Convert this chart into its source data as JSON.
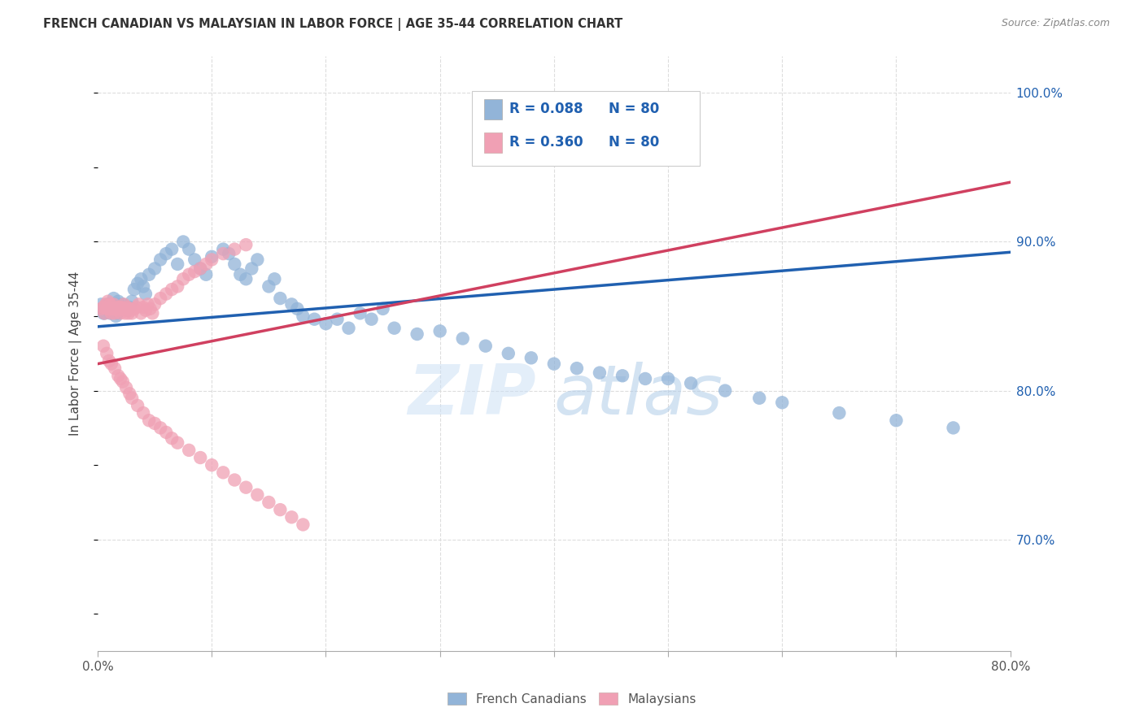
{
  "title": "FRENCH CANADIAN VS MALAYSIAN IN LABOR FORCE | AGE 35-44 CORRELATION CHART",
  "source": "Source: ZipAtlas.com",
  "ylabel": "In Labor Force | Age 35-44",
  "xlim": [
    0.0,
    0.8
  ],
  "ylim": [
    0.625,
    1.025
  ],
  "xticks": [
    0.0,
    0.1,
    0.2,
    0.3,
    0.4,
    0.5,
    0.6,
    0.7,
    0.8
  ],
  "xticklabels": [
    "0.0%",
    "",
    "",
    "",
    "",
    "",
    "",
    "",
    "80.0%"
  ],
  "yticks_right": [
    0.7,
    0.8,
    0.9,
    1.0
  ],
  "ytick_right_labels": [
    "70.0%",
    "80.0%",
    "90.0%",
    "100.0%"
  ],
  "watermark_zip": "ZIP",
  "watermark_atlas": "atlas",
  "legend_r1": "R = 0.088",
  "legend_n1": "N = 80",
  "legend_r2": "R = 0.360",
  "legend_n2": "N = 80",
  "blue_color": "#92b4d8",
  "pink_color": "#f0a0b4",
  "blue_line_color": "#2060b0",
  "pink_line_color": "#d04060",
  "blue_trend_x": [
    0.0,
    0.8
  ],
  "blue_trend_y": [
    0.843,
    0.893
  ],
  "pink_trend_x": [
    0.0,
    0.8
  ],
  "pink_trend_y": [
    0.818,
    0.94
  ],
  "blue_scatter_x": [
    0.005,
    0.007,
    0.01,
    0.012,
    0.014,
    0.016,
    0.018,
    0.02,
    0.022,
    0.024,
    0.026,
    0.028,
    0.03,
    0.032,
    0.035,
    0.038,
    0.04,
    0.042,
    0.045,
    0.05,
    0.055,
    0.06,
    0.065,
    0.07,
    0.075,
    0.08,
    0.085,
    0.09,
    0.095,
    0.1,
    0.11,
    0.115,
    0.12,
    0.125,
    0.13,
    0.135,
    0.14,
    0.15,
    0.155,
    0.16,
    0.17,
    0.175,
    0.18,
    0.19,
    0.2,
    0.21,
    0.22,
    0.23,
    0.24,
    0.25,
    0.26,
    0.28,
    0.3,
    0.32,
    0.34,
    0.36,
    0.38,
    0.4,
    0.42,
    0.44,
    0.46,
    0.48,
    0.5,
    0.52,
    0.55,
    0.58,
    0.6,
    0.65,
    0.7,
    0.75,
    0.003,
    0.004,
    0.006,
    0.008,
    0.009,
    0.011,
    0.013,
    0.015,
    0.017,
    0.019
  ],
  "blue_scatter_y": [
    0.852,
    0.855,
    0.858,
    0.856,
    0.862,
    0.85,
    0.86,
    0.856,
    0.858,
    0.855,
    0.854,
    0.856,
    0.86,
    0.868,
    0.872,
    0.875,
    0.87,
    0.865,
    0.878,
    0.882,
    0.888,
    0.892,
    0.895,
    0.885,
    0.9,
    0.895,
    0.888,
    0.882,
    0.878,
    0.89,
    0.895,
    0.892,
    0.885,
    0.878,
    0.875,
    0.882,
    0.888,
    0.87,
    0.875,
    0.862,
    0.858,
    0.855,
    0.85,
    0.848,
    0.845,
    0.848,
    0.842,
    0.852,
    0.848,
    0.855,
    0.842,
    0.838,
    0.84,
    0.835,
    0.83,
    0.825,
    0.822,
    0.818,
    0.815,
    0.812,
    0.81,
    0.808,
    0.808,
    0.805,
    0.8,
    0.795,
    0.792,
    0.785,
    0.78,
    0.775,
    0.858,
    0.855,
    0.852,
    0.855,
    0.858,
    0.852,
    0.855,
    0.858,
    0.852,
    0.855
  ],
  "pink_scatter_x": [
    0.003,
    0.005,
    0.006,
    0.007,
    0.008,
    0.009,
    0.01,
    0.011,
    0.012,
    0.013,
    0.014,
    0.015,
    0.016,
    0.017,
    0.018,
    0.019,
    0.02,
    0.021,
    0.022,
    0.023,
    0.024,
    0.025,
    0.026,
    0.027,
    0.028,
    0.029,
    0.03,
    0.032,
    0.034,
    0.036,
    0.038,
    0.04,
    0.042,
    0.044,
    0.046,
    0.048,
    0.05,
    0.055,
    0.06,
    0.065,
    0.07,
    0.075,
    0.08,
    0.085,
    0.09,
    0.095,
    0.1,
    0.11,
    0.12,
    0.13,
    0.005,
    0.008,
    0.01,
    0.012,
    0.015,
    0.018,
    0.02,
    0.022,
    0.025,
    0.028,
    0.03,
    0.035,
    0.04,
    0.045,
    0.05,
    0.055,
    0.06,
    0.065,
    0.07,
    0.08,
    0.09,
    0.1,
    0.11,
    0.12,
    0.13,
    0.14,
    0.15,
    0.16,
    0.17,
    0.18
  ],
  "pink_scatter_y": [
    0.855,
    0.856,
    0.852,
    0.858,
    0.855,
    0.86,
    0.855,
    0.858,
    0.852,
    0.855,
    0.858,
    0.852,
    0.855,
    0.856,
    0.854,
    0.856,
    0.852,
    0.856,
    0.855,
    0.858,
    0.852,
    0.855,
    0.856,
    0.852,
    0.855,
    0.854,
    0.852,
    0.855,
    0.856,
    0.858,
    0.852,
    0.856,
    0.854,
    0.858,
    0.855,
    0.852,
    0.858,
    0.862,
    0.865,
    0.868,
    0.87,
    0.875,
    0.878,
    0.88,
    0.882,
    0.885,
    0.888,
    0.892,
    0.895,
    0.898,
    0.83,
    0.825,
    0.82,
    0.818,
    0.815,
    0.81,
    0.808,
    0.806,
    0.802,
    0.798,
    0.795,
    0.79,
    0.785,
    0.78,
    0.778,
    0.775,
    0.772,
    0.768,
    0.765,
    0.76,
    0.755,
    0.75,
    0.745,
    0.74,
    0.735,
    0.73,
    0.725,
    0.72,
    0.715,
    0.71
  ]
}
